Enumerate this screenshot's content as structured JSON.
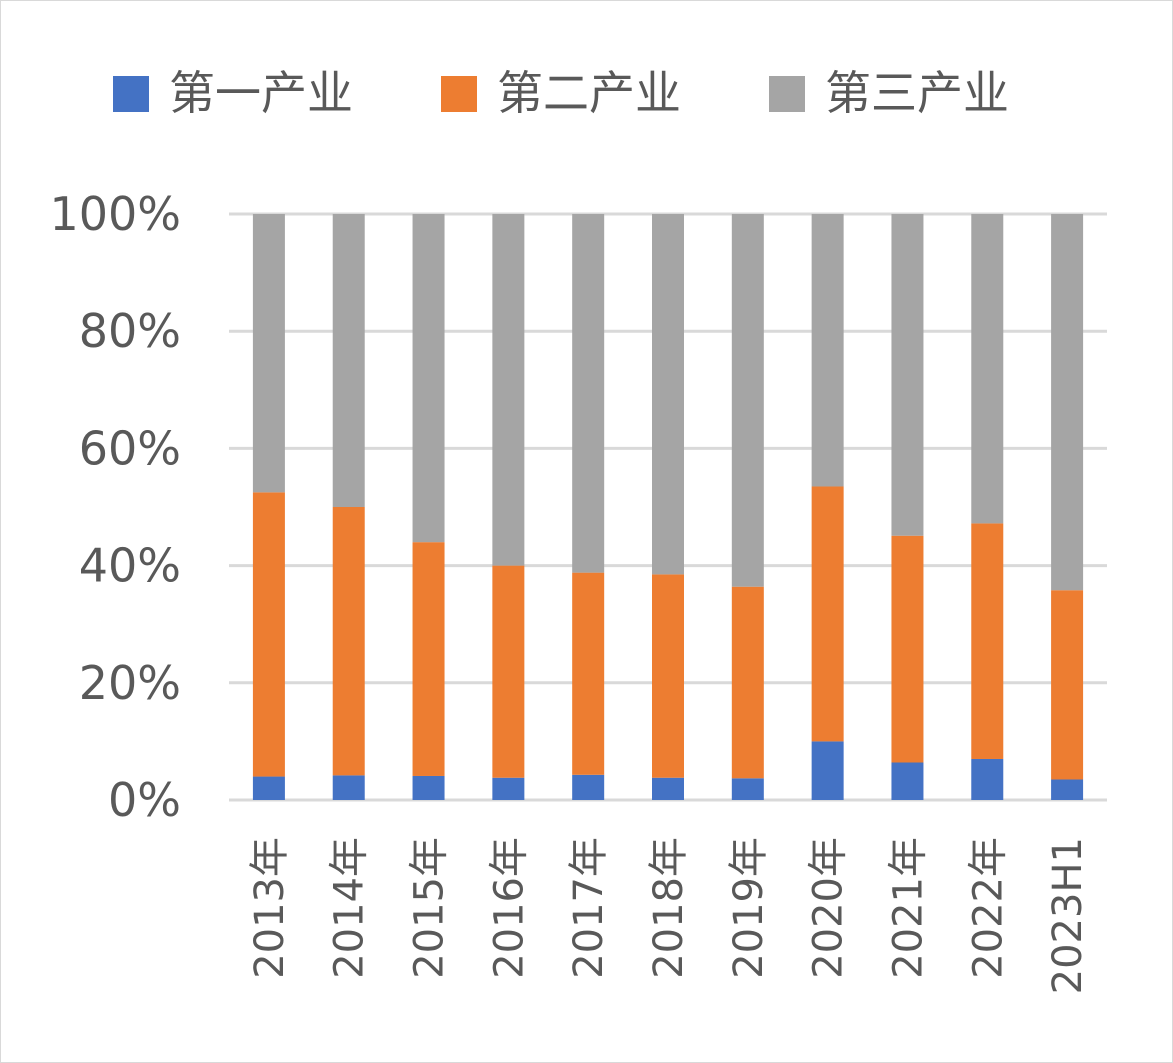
{
  "chart_data": {
    "type": "bar",
    "stacked": true,
    "categories": [
      "2013年",
      "2014年",
      "2015年",
      "2016年",
      "2017年",
      "2018年",
      "2019年",
      "2020年",
      "2021年",
      "2022年",
      "2023H1"
    ],
    "series": [
      {
        "name": "第一产业",
        "color": "#4472c4",
        "values": [
          4,
          4.2,
          4.1,
          3.8,
          4.3,
          3.8,
          3.7,
          10,
          6.4,
          7,
          3.5
        ]
      },
      {
        "name": "第二产业",
        "color": "#ed7d31",
        "values": [
          48.5,
          45.8,
          39.9,
          36.2,
          34.5,
          34.7,
          32.7,
          43.5,
          38.7,
          40.2,
          32.3
        ]
      },
      {
        "name": "第三产业",
        "color": "#a5a5a5",
        "values": [
          47.5,
          50,
          56,
          60,
          61.2,
          61.5,
          63.6,
          46.5,
          54.9,
          52.8,
          64.2
        ]
      }
    ],
    "y_ticks": [
      "0%",
      "20%",
      "40%",
      "60%",
      "80%",
      "100%"
    ],
    "ylim": [
      0,
      100
    ],
    "grid": true,
    "legend_position": "top"
  }
}
